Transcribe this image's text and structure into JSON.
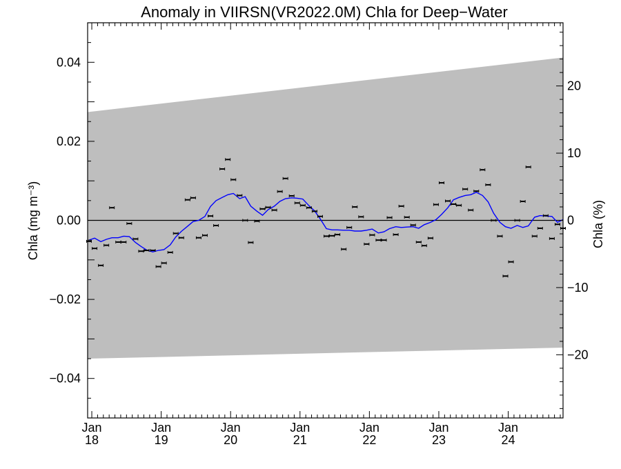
{
  "chart_data": {
    "type": "scatter",
    "title": "Anomaly in VIIRSN(VR2022.0M) Chla for Deep−Water",
    "ylabel": "Chla (mg m⁻³)",
    "y2label": "Chla (%)",
    "ylim": [
      -0.05,
      0.05
    ],
    "y2lim": [
      -29.4,
      29.4
    ],
    "xlim": [
      2017.94,
      2024.79
    ],
    "x_ticks": [
      {
        "x": 2018.0,
        "line1": "Jan",
        "line2": "18"
      },
      {
        "x": 2019.0,
        "line1": "Jan",
        "line2": "19"
      },
      {
        "x": 2020.0,
        "line1": "Jan",
        "line2": "20"
      },
      {
        "x": 2021.0,
        "line1": "Jan",
        "line2": "21"
      },
      {
        "x": 2022.0,
        "line1": "Jan",
        "line2": "22"
      },
      {
        "x": 2023.0,
        "line1": "Jan",
        "line2": "23"
      },
      {
        "x": 2024.0,
        "line1": "Jan",
        "line2": "24"
      }
    ],
    "y_ticks": [
      {
        "v": 0.04,
        "label": "0.04"
      },
      {
        "v": 0.02,
        "label": "0.02"
      },
      {
        "v": 0.0,
        "label": "0.00"
      },
      {
        "v": -0.02,
        "label": "−0.02"
      },
      {
        "v": -0.04,
        "label": "−0.04"
      }
    ],
    "y2_ticks": [
      {
        "v": 20,
        "label": "20"
      },
      {
        "v": 10,
        "label": "10"
      },
      {
        "v": 0,
        "label": "0"
      },
      {
        "v": -10,
        "label": "−10"
      },
      {
        "v": -20,
        "label": "−20"
      }
    ],
    "band": {
      "x": [
        2017.94,
        2024.79
      ],
      "upper": [
        0.0274,
        0.0412
      ],
      "lower": [
        -0.035,
        -0.0322
      ],
      "color": "#bebebe"
    },
    "zero_line": true,
    "grid": false,
    "series": [
      {
        "type": "scatter",
        "color": "#000000",
        "x": [
          2017.96,
          2018.04,
          2018.13,
          2018.21,
          2018.29,
          2018.38,
          2018.46,
          2018.54,
          2018.63,
          2018.71,
          2018.79,
          2018.88,
          2018.96,
          2019.04,
          2019.13,
          2019.21,
          2019.29,
          2019.38,
          2019.46,
          2019.54,
          2019.63,
          2019.71,
          2019.79,
          2019.88,
          2019.96,
          2020.04,
          2020.13,
          2020.21,
          2020.29,
          2020.38,
          2020.46,
          2020.54,
          2020.63,
          2020.71,
          2020.79,
          2020.88,
          2020.96,
          2021.04,
          2021.13,
          2021.21,
          2021.29,
          2021.38,
          2021.46,
          2021.54,
          2021.63,
          2021.71,
          2021.79,
          2021.88,
          2021.96,
          2022.04,
          2022.13,
          2022.21,
          2022.29,
          2022.38,
          2022.46,
          2022.54,
          2022.63,
          2022.71,
          2022.79,
          2022.88,
          2022.96,
          2023.04,
          2023.13,
          2023.21,
          2023.29,
          2023.38,
          2023.46,
          2023.54,
          2023.63,
          2023.71,
          2023.79,
          2023.88,
          2023.96,
          2024.04,
          2024.13,
          2024.21,
          2024.29,
          2024.38,
          2024.46,
          2024.54,
          2024.63,
          2024.71,
          2024.79
        ],
        "y": [
          -0.0053,
          -0.0071,
          -0.0114,
          -0.0063,
          0.0032,
          -0.0055,
          -0.0055,
          -0.0008,
          -0.0047,
          -0.0078,
          -0.0076,
          -0.0076,
          -0.0117,
          -0.0108,
          -0.0081,
          -0.0033,
          -0.0044,
          0.0052,
          0.0057,
          -0.0044,
          -0.0038,
          0.0011,
          -0.0013,
          0.013,
          0.0154,
          0.0103,
          0.0063,
          0.0,
          -0.0056,
          -0.0002,
          0.0029,
          0.0033,
          0.0026,
          0.0073,
          0.0106,
          0.0062,
          0.0044,
          0.0038,
          0.0032,
          0.0023,
          0.001,
          -0.004,
          -0.0039,
          -0.0036,
          -0.0073,
          -0.0018,
          0.0034,
          0.0009,
          -0.006,
          -0.0037,
          -0.005,
          -0.005,
          0.0007,
          -0.0036,
          0.0036,
          0.0008,
          -0.0012,
          -0.0055,
          -0.0064,
          -0.0045,
          0.004,
          0.0095,
          0.0049,
          0.0041,
          0.0038,
          0.0079,
          0.0026,
          0.0074,
          0.0128,
          0.009,
          0.0,
          -0.004,
          -0.0141,
          -0.0105,
          0.0,
          0.0048,
          0.0135,
          -0.004,
          -0.002,
          0.0012,
          -0.0046,
          -0.001,
          -0.002
        ]
      },
      {
        "type": "line",
        "color": "#0000ff",
        "x": [
          2017.96,
          2018.04,
          2018.13,
          2018.21,
          2018.29,
          2018.38,
          2018.46,
          2018.54,
          2018.63,
          2018.71,
          2018.79,
          2018.88,
          2018.96,
          2019.04,
          2019.13,
          2019.21,
          2019.29,
          2019.38,
          2019.46,
          2019.54,
          2019.63,
          2019.71,
          2019.79,
          2019.88,
          2019.96,
          2020.04,
          2020.13,
          2020.21,
          2020.29,
          2020.38,
          2020.46,
          2020.54,
          2020.63,
          2020.71,
          2020.79,
          2020.88,
          2020.96,
          2021.04,
          2021.13,
          2021.21,
          2021.29,
          2021.38,
          2021.46,
          2021.54,
          2021.63,
          2021.71,
          2021.79,
          2021.88,
          2021.96,
          2022.04,
          2022.13,
          2022.21,
          2022.29,
          2022.38,
          2022.46,
          2022.54,
          2022.63,
          2022.71,
          2022.79,
          2022.88,
          2022.96,
          2023.04,
          2023.13,
          2023.21,
          2023.29,
          2023.38,
          2023.46,
          2023.54,
          2023.63,
          2023.71,
          2023.79,
          2023.88,
          2023.96,
          2024.04,
          2024.13,
          2024.21,
          2024.29,
          2024.38,
          2024.46,
          2024.54,
          2024.63,
          2024.71,
          2024.79
        ],
        "y": [
          -0.005,
          -0.0045,
          -0.0054,
          -0.0048,
          -0.0044,
          -0.0044,
          -0.004,
          -0.0041,
          -0.0056,
          -0.0066,
          -0.0075,
          -0.008,
          -0.0076,
          -0.0074,
          -0.0062,
          -0.0042,
          -0.0028,
          -0.0015,
          -0.0003,
          0.0,
          0.001,
          0.0035,
          0.005,
          0.0058,
          0.0065,
          0.0068,
          0.0055,
          0.006,
          0.0036,
          0.0023,
          0.0013,
          0.0027,
          0.0036,
          0.0048,
          0.0055,
          0.0057,
          0.0056,
          0.0054,
          0.0037,
          0.0024,
          0.0004,
          -0.0021,
          -0.0024,
          -0.0024,
          -0.0025,
          -0.0025,
          -0.0027,
          -0.0027,
          -0.0025,
          -0.0022,
          -0.0032,
          -0.0029,
          -0.0021,
          -0.0016,
          -0.0018,
          -0.0017,
          -0.0016,
          -0.002,
          -0.0011,
          -0.0005,
          0.0002,
          0.0015,
          0.0032,
          0.0052,
          0.0058,
          0.0063,
          0.0065,
          0.0071,
          0.0063,
          0.0047,
          0.0018,
          -0.0005,
          -0.0016,
          -0.002,
          -0.0013,
          -0.0018,
          -0.0014,
          0.0008,
          0.0012,
          0.0011,
          0.001,
          -0.0005,
          0.0002
        ]
      }
    ]
  }
}
